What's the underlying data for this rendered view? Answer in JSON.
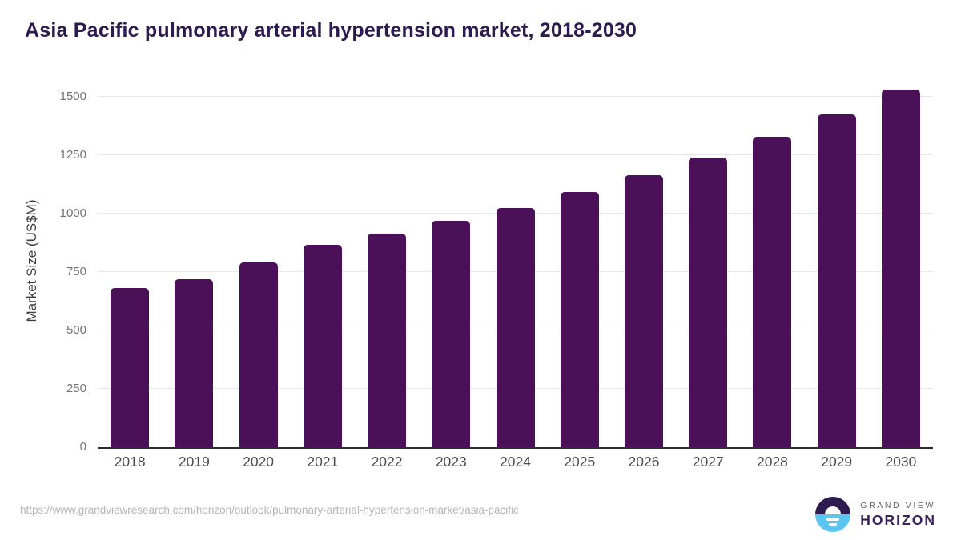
{
  "title": "Asia Pacific pulmonary arterial hypertension market, 2018-2030",
  "colors": {
    "bar": "#4a1158",
    "title": "#2d1a4e",
    "gridline": "#e8e8e8",
    "axis_line": "#2e2e2e",
    "y_tick_text": "#737373",
    "x_tick_text": "#4c4c4c",
    "footer_text": "#b5b5b5",
    "logo_purple": "#2d1a4e",
    "logo_blue": "#5bc5f2"
  },
  "chart_data": {
    "type": "bar",
    "title": "Asia Pacific pulmonary arterial hypertension market, 2018-2030",
    "categories": [
      "2018",
      "2019",
      "2020",
      "2021",
      "2022",
      "2023",
      "2024",
      "2025",
      "2026",
      "2027",
      "2028",
      "2029",
      "2030"
    ],
    "values": [
      683,
      719,
      790,
      867,
      916,
      971,
      1026,
      1092,
      1165,
      1242,
      1331,
      1427,
      1531
    ],
    "xlabel": "",
    "ylabel": "Market Size (US$M)",
    "ylim": [
      0,
      1600
    ],
    "yticks": [
      0,
      250,
      500,
      750,
      1000,
      1250,
      1500
    ],
    "grid": true,
    "legend": false,
    "bar_color": "#4a1158"
  },
  "footer": {
    "source_url": "https://www.grandviewresearch.com/horizon/outlook/pulmonary-arterial-hypertension-market/asia-pacific",
    "logo_line1": "GRAND VIEW",
    "logo_line2": "HORIZON"
  }
}
